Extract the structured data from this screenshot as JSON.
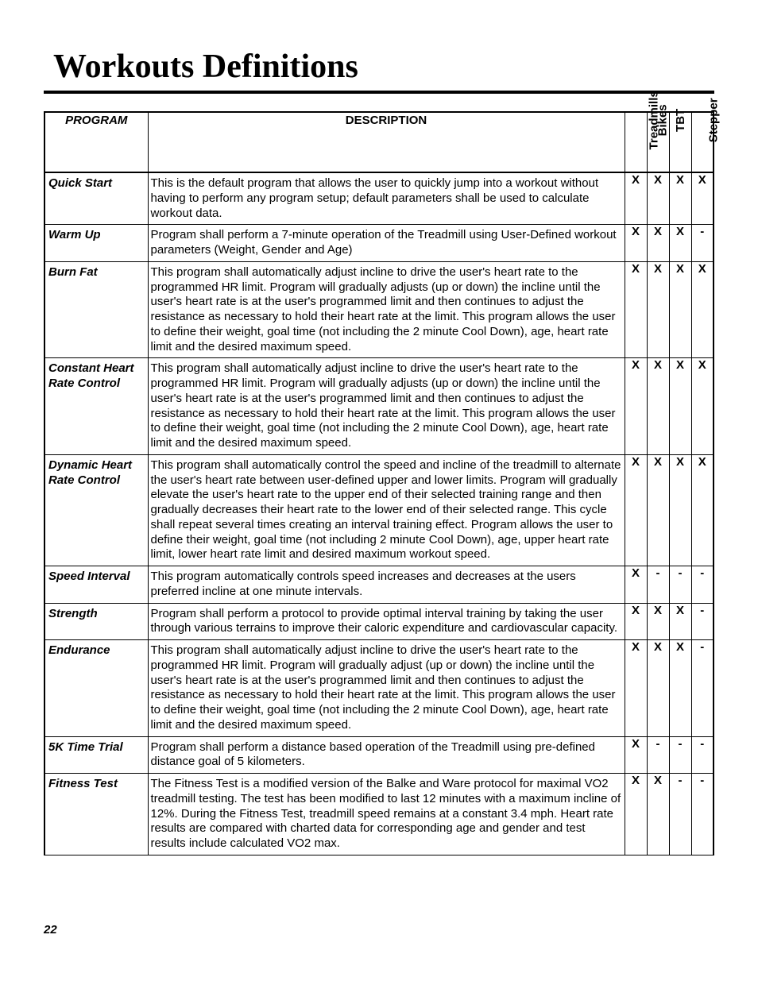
{
  "page": {
    "title": "Workouts Definitions",
    "page_number": "22"
  },
  "table": {
    "headers": {
      "program": "PROGRAM",
      "description": "DESCRIPTION",
      "equipment": [
        "Treadmills",
        "Bikes",
        "TBT",
        "Stepper"
      ]
    },
    "rows": [
      {
        "program": "Quick Start",
        "description": "This is the default program that allows the user to quickly jump into a workout without having to perform any program setup; default parameters shall be used to calculate workout data.",
        "eq": [
          "X",
          "X",
          "X",
          "X"
        ]
      },
      {
        "program": "Warm Up",
        "description": "Program shall perform a 7-minute operation of the Treadmill using User-Defined workout parameters (Weight, Gender and Age)",
        "eq": [
          "X",
          "X",
          "X",
          "-"
        ]
      },
      {
        "program": "Burn Fat",
        "description": "This program shall automatically adjust incline to drive the user's heart rate to the programmed HR limit.  Program will gradually adjusts (up or down) the incline until the user's heart rate is at the user's programmed limit and then continues to adjust the resistance as necessary to hold their heart rate at the limit.  This program allows the user to define their weight, goal time (not including the 2 minute Cool Down), age, heart rate limit and the desired maximum speed.",
        "eq": [
          "X",
          "X",
          "X",
          "X"
        ]
      },
      {
        "program": "Constant Heart Rate Control",
        "description": "This program shall automatically adjust incline to drive the user's heart rate to the programmed HR limit.  Program will gradually adjusts (up or down) the incline until the user's heart rate is at the user's programmed limit and then continues to adjust the resistance as necessary to hold their heart rate at the limit.  This program allows the user to define their weight, goal time (not including the 2 minute Cool Down), age, heart rate limit and the desired maximum speed.",
        "eq": [
          "X",
          "X",
          "X",
          "X"
        ]
      },
      {
        "program": "Dynamic Heart Rate Control",
        "description": "This program shall automatically control the speed and incline of the treadmill to alternate the user's heart rate between user-defined upper and lower limits.  Program will gradually elevate the user's heart rate to the upper end of their selected training range and then gradually decreases their heart rate to the lower end of their selected range.  This cycle shall repeat several times creating an interval training effect.  Program allows the user to define their weight, goal time (not including 2 minute Cool Down), age, upper heart rate limit, lower heart rate limit and desired maximum workout speed.",
        "eq": [
          "X",
          "X",
          "X",
          "X"
        ]
      },
      {
        "program": "Speed Interval",
        "description": "This program automatically controls speed increases and decreases at the users preferred incline at one minute intervals.",
        "eq": [
          "X",
          "-",
          "-",
          "-"
        ]
      },
      {
        "program": "Strength",
        "description": "Program shall perform a protocol to provide optimal interval training by taking the user through various terrains to improve their caloric expenditure and cardiovascular capacity.",
        "eq": [
          "X",
          "X",
          "X",
          "-"
        ]
      },
      {
        "program": "Endurance",
        "description": "This program shall automatically adjust incline to drive the user's heart rate to the programmed HR limit.  Program will gradually adjust (up or down) the incline until the user's heart rate is at the user's programmed limit and then continues to adjust the resistance as necessary to hold their heart rate at the limit.  This program allows the user to define their weight, goal time (not including the 2 minute Cool Down), age, heart rate limit and the desired maximum speed.",
        "eq": [
          "X",
          "X",
          "X",
          "-"
        ]
      },
      {
        "program": "5K Time Trial",
        "description": "Program shall perform a distance based operation of the Treadmill using pre-defined distance goal of 5 kilometers.",
        "eq": [
          "X",
          "-",
          "-",
          "-"
        ]
      },
      {
        "program": "Fitness Test",
        "description": "The Fitness Test is a modified version of the Balke and Ware protocol for maximal VO2 treadmill testing. The test has been modified to last 12 minutes with a maximum incline of 12%. During the Fitness Test, treadmill speed remains at a constant 3.4 mph. Heart rate results are compared with charted data for corresponding age and gender and test results include calculated VO2 max.",
        "eq": [
          "X",
          "X",
          "-",
          "-"
        ]
      }
    ]
  }
}
